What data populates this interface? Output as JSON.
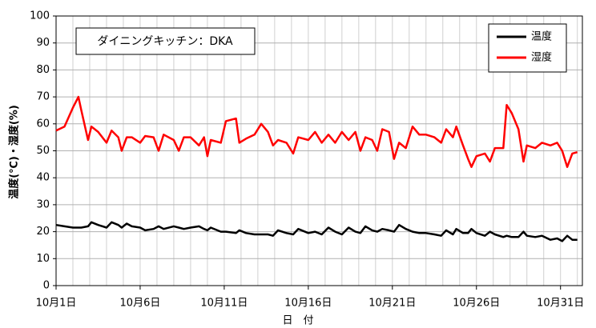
{
  "chart_data": {
    "type": "line",
    "annotation": "ダイニングキッチン：DKA",
    "x_label": "日　付",
    "y_label": "温度(℃)・湿度(%)",
    "x": [
      1,
      1.5,
      2,
      2.33,
      2.5,
      2.9,
      3.1,
      3.5,
      4,
      4.3,
      4.7,
      4.9,
      5.2,
      5.5,
      6,
      6.3,
      6.8,
      7.1,
      7.4,
      8,
      8.3,
      8.6,
      9,
      9.5,
      9.8,
      10,
      10.2,
      10.8,
      11.1,
      11.7,
      11.9,
      12.3,
      12.8,
      13.2,
      13.6,
      13.9,
      14.2,
      14.7,
      15.1,
      15.4,
      16,
      16.4,
      16.8,
      17.2,
      17.6,
      18,
      18.4,
      18.8,
      19.1,
      19.4,
      19.8,
      20.1,
      20.4,
      20.8,
      21.1,
      21.4,
      21.8,
      22.2,
      22.6,
      23,
      23.5,
      23.9,
      24.2,
      24.6,
      24.8,
      25.2,
      25.5,
      25.7,
      26,
      26.5,
      26.8,
      27.1,
      27.6,
      27.8,
      28.1,
      28.5,
      28.8,
      29,
      29.5,
      29.9,
      30.4,
      30.8,
      31.1,
      31.4,
      31.7,
      32
    ],
    "series": [
      {
        "name": "温度",
        "color": "#000000",
        "values": [
          22.5,
          22,
          21.5,
          21.5,
          21.5,
          22,
          23.5,
          22.5,
          21.5,
          23.5,
          22.5,
          21.5,
          23,
          22,
          21.5,
          20.5,
          21,
          22,
          21,
          22,
          21.5,
          21,
          21.5,
          22,
          21,
          20.5,
          21.5,
          20,
          20,
          19.5,
          20.5,
          19.5,
          19,
          19,
          19,
          18.5,
          20.5,
          19.5,
          19,
          21,
          19.5,
          20,
          19,
          21.5,
          20,
          19,
          21.5,
          20,
          19.5,
          22,
          20.5,
          20,
          21,
          20.5,
          20,
          22.5,
          21,
          20,
          19.5,
          19.5,
          19,
          18.5,
          20.5,
          19,
          21,
          19.5,
          19.5,
          21,
          19.5,
          18.5,
          20,
          19,
          18,
          18.5,
          18,
          18,
          20,
          18.5,
          18,
          18.5,
          17,
          17.5,
          16.5,
          18.5,
          17,
          17
        ]
      },
      {
        "name": "湿度",
        "color": "#ff0000",
        "values": [
          57.5,
          59,
          66,
          70,
          65,
          54,
          59,
          57,
          53,
          57.5,
          55,
          50,
          55,
          55,
          53,
          55.5,
          55,
          50,
          56,
          54,
          50,
          55,
          55,
          52,
          55,
          48,
          54,
          53,
          61,
          62,
          53,
          54.5,
          56,
          60,
          57,
          52,
          54,
          53,
          49,
          55,
          54,
          57,
          53,
          56,
          53,
          57,
          54,
          57,
          50,
          55,
          54,
          50,
          58,
          57,
          47,
          53,
          51,
          59,
          56,
          56,
          55,
          53,
          58,
          55,
          59,
          52,
          47,
          44,
          48,
          49,
          46,
          51,
          51,
          67,
          64,
          58,
          46,
          52,
          51,
          53,
          52,
          53,
          50,
          44,
          49,
          49.5
        ]
      }
    ],
    "xlim": [
      1,
      32.3
    ],
    "xticks": [
      {
        "value": 1,
        "label": "10月1日"
      },
      {
        "value": 6,
        "label": "10月6日"
      },
      {
        "value": 11,
        "label": "10月11日"
      },
      {
        "value": 16,
        "label": "10月16日"
      },
      {
        "value": 21,
        "label": "10月21日"
      },
      {
        "value": 26,
        "label": "10月26日"
      },
      {
        "value": 31,
        "label": "10月31日"
      }
    ],
    "ylim": [
      0,
      100
    ],
    "yticks": [
      0,
      10,
      20,
      30,
      40,
      50,
      60,
      70,
      80,
      90,
      100
    ],
    "grid": true,
    "legend": "upper right"
  }
}
